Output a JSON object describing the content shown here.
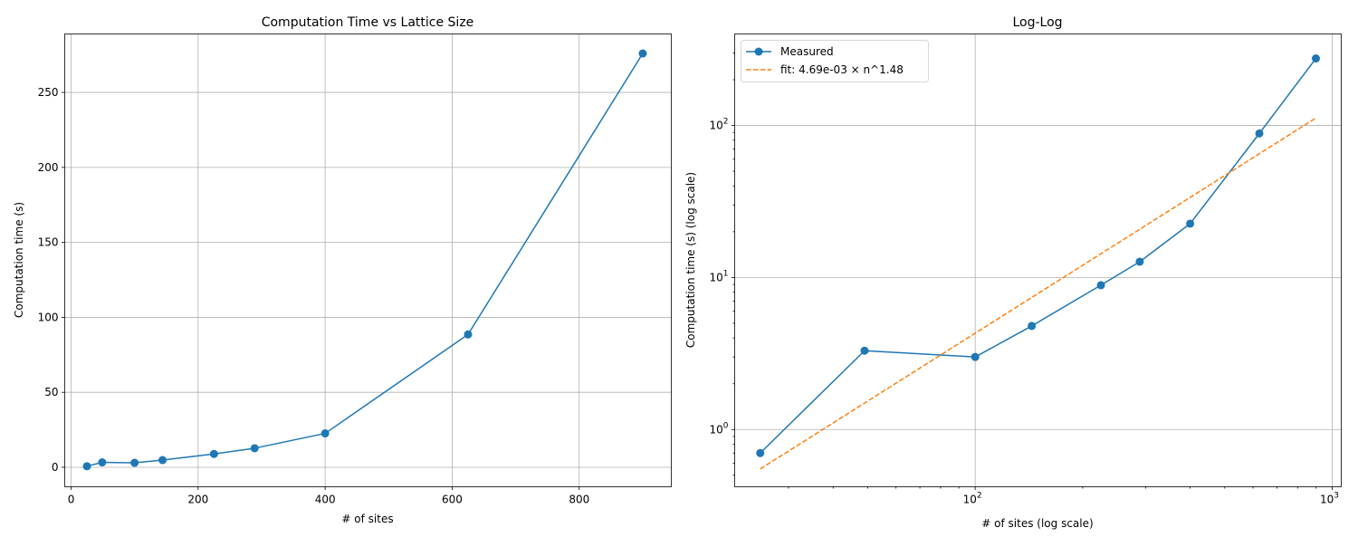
{
  "chart_data": [
    {
      "type": "line",
      "title": "Computation Time vs Lattice Size",
      "xlabel": "# of sites",
      "ylabel": "Computation time (s)",
      "xlim": [
        -10,
        945
      ],
      "ylim": [
        -13,
        289
      ],
      "xticks": [
        0,
        200,
        400,
        600,
        800
      ],
      "xtick_labels": [
        "0",
        "200",
        "400",
        "600",
        "800"
      ],
      "yticks": [
        0,
        50,
        100,
        150,
        200,
        250
      ],
      "ytick_labels": [
        "0",
        "50",
        "100",
        "150",
        "200",
        "250"
      ],
      "grid": true,
      "series": [
        {
          "color": "#1f77b4",
          "marker": "circle",
          "x": [
            25,
            49,
            100,
            144,
            225,
            289,
            400,
            625,
            900
          ],
          "y": [
            0.7,
            3.3,
            3.0,
            4.8,
            8.9,
            12.7,
            22.6,
            88.6,
            276
          ]
        }
      ]
    },
    {
      "type": "line",
      "title": "Log-Log",
      "xlabel": "# of sites (log scale)",
      "ylabel": "Computation time (s) (log scale)",
      "xscale": "log",
      "yscale": "log",
      "xlim": [
        21.2,
        1060
      ],
      "ylim": [
        0.42,
        400
      ],
      "xticks": [
        100,
        1000
      ],
      "xtick_labels": [
        "10",
        "10"
      ],
      "xtick_exponents": [
        "2",
        "3"
      ],
      "yticks": [
        1,
        10,
        100
      ],
      "ytick_labels": [
        "10",
        "10",
        "10"
      ],
      "ytick_exponents": [
        "0",
        "1",
        "2"
      ],
      "grid": true,
      "legend_position": "top-left",
      "series": [
        {
          "name": "Measured",
          "color": "#1f77b4",
          "marker": "circle",
          "style": "solid",
          "x": [
            25,
            49,
            100,
            144,
            225,
            289,
            400,
            625,
            900
          ],
          "y": [
            0.7,
            3.3,
            3.0,
            4.8,
            8.9,
            12.7,
            22.6,
            88.6,
            276
          ]
        },
        {
          "name": "fit: 4.69e-03 × n^1.48",
          "color": "#ff7f0e",
          "style": "dashed",
          "x": [
            25,
            900
          ],
          "y": [
            0.55,
            112
          ]
        }
      ]
    }
  ]
}
